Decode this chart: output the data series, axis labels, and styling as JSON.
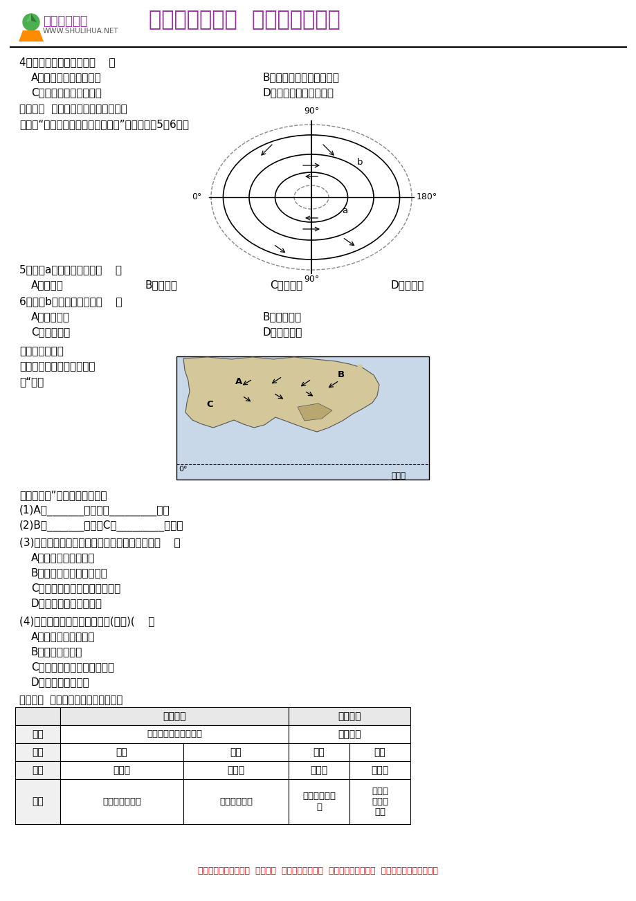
{
  "title_logo_text": "书利华教育网",
  "title_logo_url": "WWW.SHULIHUA.NET",
  "title_main": "集网络资源精华  汇名校名师力作",
  "header_color": "#9B2DA5",
  "bottom_text": "提供精品打包资料下载  组卷服务  看万节优质课录像  免费下百万教学资源  提供论文写作及发表服务",
  "bottom_color": "#FF0000",
  "line1": "4．由气压值可推断此时（    ）",
  "line2a": "A．夏威夷高压势力强盛",
  "line2b": "B．气压带、风带向北移动",
  "line3a": "C．大陆上等温线向北凸",
  "line3b": "D．印度半岛盛行东北风",
  "line4": "知识点二  气压带和风带对气候的影响",
  "line5": "下图是“半球近地面风带分布示意图”，读图回筕5～6题。",
  "q5": "5．图中a处的盛行风向是（    ）",
  "q5a": "A．东北风",
  "q5b": "B．西北风",
  "q5c": "C．东南风",
  "q5d": "D．西南风",
  "q6": "6．图中b处的气候特征是（    ）",
  "q6a": "A．炎热干燥",
  "q6b": "B．高温多雨",
  "q6c": "C．温和干燥",
  "q6d": "D．温和湿润",
  "method_title": "【方法技巧练】",
  "method_sub": "东亚季风与南亚季风的比较",
  "method_sub2": "读“亚洲",
  "season_intro": "季风示意图”，回答下列问题。",
  "q_p1": "(1)A为_______压，又称_________压。",
  "q_p2": "(2)B为_______季风，C为_________季风。",
  "q_p3": "(3)亚洲东部季风环流最为典型，其主要原因是（    ）",
  "q_p3a": "A．亚洲的山区最高大",
  "q_p3b": "B．海陆热力性质差异明显",
  "q_p3c": "C．亚洲的气压带、风带最完整",
  "q_p3d": "D．东亚东侧的海洋最深",
  "q_p4": "(4)形成南亚季风的主要原因是(双选)(    ）",
  "q_p4a": "A．海陆热力性质差异",
  "q_p4b": "B．亚洲地形状况",
  "q_p4c": "C．气压带、风带的季节移动",
  "q_p4d": "D．地面反射率不同",
  "table_title": "方法技巧  东亚季风与南亚季风的比较",
  "bg_color": "#FFFFFF"
}
